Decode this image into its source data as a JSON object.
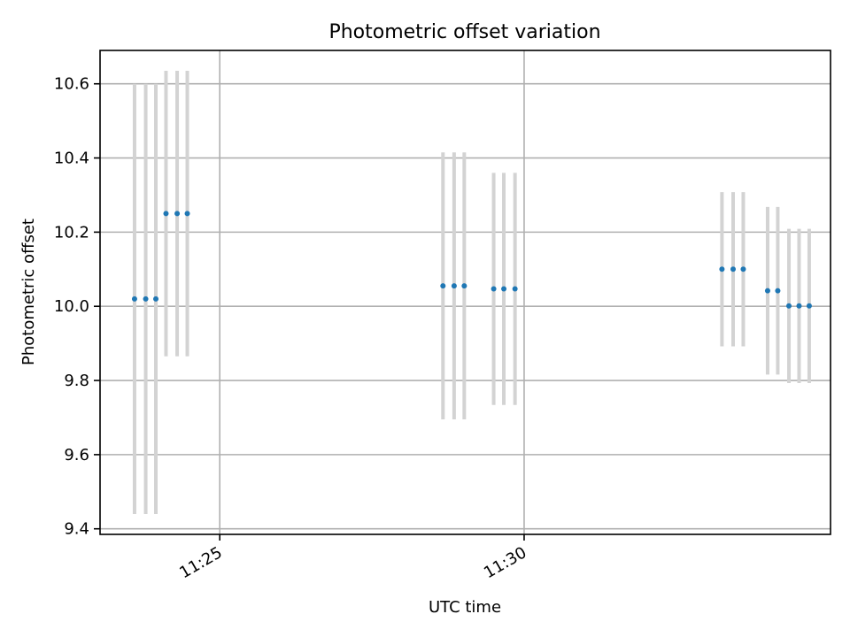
{
  "chart_data": {
    "type": "scatter",
    "title": "Photometric offset variation",
    "xlabel": "UTC time",
    "ylabel": "Photometric offset",
    "x_ticks": [
      "11:25",
      "11:30"
    ],
    "y_ticks": [
      "9.4",
      "9.6",
      "9.8",
      "10.0",
      "10.2",
      "10.4",
      "10.6"
    ],
    "x_axis_type": "time",
    "xlim": [
      "11:23:02",
      "11:35:02"
    ],
    "ylim": [
      9.385,
      10.69
    ],
    "grid": true,
    "series": [
      {
        "color": "#1f77b4",
        "errorbar_color": "#d3d3d3",
        "points": [
          {
            "x": "11:23:36",
            "y": 10.02,
            "err": 0.58
          },
          {
            "x": "11:23:47",
            "y": 10.02,
            "err": 0.58
          },
          {
            "x": "11:23:57",
            "y": 10.02,
            "err": 0.58
          },
          {
            "x": "11:24:07",
            "y": 10.25,
            "err": 0.385
          },
          {
            "x": "11:24:18",
            "y": 10.25,
            "err": 0.385
          },
          {
            "x": "11:24:28",
            "y": 10.25,
            "err": 0.385
          },
          {
            "x": "11:28:40",
            "y": 10.055,
            "err": 0.36
          },
          {
            "x": "11:28:51",
            "y": 10.055,
            "err": 0.36
          },
          {
            "x": "11:29:01",
            "y": 10.055,
            "err": 0.36
          },
          {
            "x": "11:29:30",
            "y": 10.047,
            "err": 0.313
          },
          {
            "x": "11:29:40",
            "y": 10.047,
            "err": 0.313
          },
          {
            "x": "11:29:51",
            "y": 10.047,
            "err": 0.313
          },
          {
            "x": "11:33:15",
            "y": 10.1,
            "err": 0.208
          },
          {
            "x": "11:33:26",
            "y": 10.1,
            "err": 0.208
          },
          {
            "x": "11:33:36",
            "y": 10.1,
            "err": 0.208
          },
          {
            "x": "11:34:00",
            "y": 10.042,
            "err": 0.226
          },
          {
            "x": "11:34:10",
            "y": 10.042,
            "err": 0.226
          },
          {
            "x": "11:34:21",
            "y": 10.001,
            "err": 0.208
          },
          {
            "x": "11:34:31",
            "y": 10.001,
            "err": 0.208
          },
          {
            "x": "11:34:41",
            "y": 10.001,
            "err": 0.208
          }
        ]
      }
    ]
  }
}
